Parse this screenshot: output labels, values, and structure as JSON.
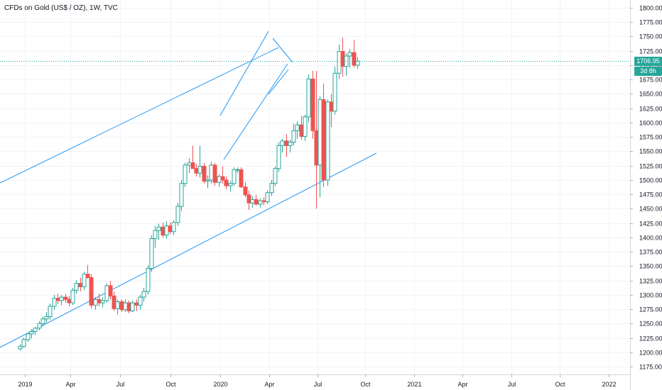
{
  "title": "CFDs on Gold (US$ / OZ), 1W, TVC",
  "price_label": "1706.95",
  "countdown_label": "3d 8h",
  "colors": {
    "up": "#26a69a",
    "down": "#ef5350",
    "trendline": "#2196f3",
    "grid": "#f0f3fa",
    "price_line": "#26a69a"
  },
  "chart_data": {
    "type": "candlestick",
    "title": "CFDs on Gold (US$ / OZ), 1W, TVC",
    "interval": "1W",
    "x_ticks": [
      "2019",
      "Apr",
      "Jul",
      "Oct",
      "2020",
      "Apr",
      "Jul",
      "Oct",
      "2021",
      "Apr",
      "Jul",
      "Oct",
      "2022"
    ],
    "y_ticks": [
      1175,
      1200,
      1225,
      1250,
      1275,
      1300,
      1325,
      1350,
      1375,
      1400,
      1425,
      1450,
      1475,
      1500,
      1525,
      1550,
      1575,
      1600,
      1625,
      1650,
      1675,
      1700,
      1725,
      1750,
      1775,
      1800
    ],
    "ylim": [
      1165,
      1812
    ],
    "last_price": 1706.95,
    "candles": [
      {
        "date": "2018-12-23",
        "o": 1206,
        "h": 1214,
        "l": 1203,
        "c": 1210
      },
      {
        "date": "2018-12-30",
        "o": 1210,
        "h": 1226,
        "l": 1208,
        "c": 1222
      },
      {
        "date": "2019-01-06",
        "o": 1222,
        "h": 1234,
        "l": 1218,
        "c": 1232
      },
      {
        "date": "2019-01-13",
        "o": 1232,
        "h": 1240,
        "l": 1224,
        "c": 1236
      },
      {
        "date": "2019-01-20",
        "o": 1236,
        "h": 1244,
        "l": 1230,
        "c": 1242
      },
      {
        "date": "2019-01-27",
        "o": 1242,
        "h": 1254,
        "l": 1238,
        "c": 1250
      },
      {
        "date": "2019-02-03",
        "o": 1250,
        "h": 1262,
        "l": 1245,
        "c": 1258
      },
      {
        "date": "2019-02-10",
        "o": 1258,
        "h": 1270,
        "l": 1252,
        "c": 1262
      },
      {
        "date": "2019-02-17",
        "o": 1262,
        "h": 1285,
        "l": 1257,
        "c": 1280
      },
      {
        "date": "2019-02-24",
        "o": 1280,
        "h": 1300,
        "l": 1274,
        "c": 1294
      },
      {
        "date": "2019-03-03",
        "o": 1294,
        "h": 1302,
        "l": 1284,
        "c": 1290
      },
      {
        "date": "2019-03-10",
        "o": 1290,
        "h": 1300,
        "l": 1282,
        "c": 1296
      },
      {
        "date": "2019-03-17",
        "o": 1296,
        "h": 1302,
        "l": 1286,
        "c": 1292
      },
      {
        "date": "2019-03-24",
        "o": 1292,
        "h": 1298,
        "l": 1280,
        "c": 1286
      },
      {
        "date": "2019-03-31",
        "o": 1286,
        "h": 1312,
        "l": 1282,
        "c": 1308
      },
      {
        "date": "2019-04-07",
        "o": 1308,
        "h": 1326,
        "l": 1302,
        "c": 1320
      },
      {
        "date": "2019-04-14",
        "o": 1320,
        "h": 1330,
        "l": 1306,
        "c": 1314
      },
      {
        "date": "2019-04-21",
        "o": 1314,
        "h": 1340,
        "l": 1308,
        "c": 1336
      },
      {
        "date": "2019-04-28",
        "o": 1336,
        "h": 1352,
        "l": 1328,
        "c": 1330
      },
      {
        "date": "2019-05-05",
        "o": 1330,
        "h": 1336,
        "l": 1276,
        "c": 1282
      },
      {
        "date": "2019-05-12",
        "o": 1282,
        "h": 1296,
        "l": 1274,
        "c": 1292
      },
      {
        "date": "2019-05-19",
        "o": 1292,
        "h": 1302,
        "l": 1280,
        "c": 1286
      },
      {
        "date": "2019-05-26",
        "o": 1286,
        "h": 1296,
        "l": 1278,
        "c": 1290
      },
      {
        "date": "2019-06-02",
        "o": 1290,
        "h": 1320,
        "l": 1286,
        "c": 1316
      },
      {
        "date": "2019-06-09",
        "o": 1316,
        "h": 1324,
        "l": 1292,
        "c": 1298
      },
      {
        "date": "2019-06-16",
        "o": 1298,
        "h": 1306,
        "l": 1272,
        "c": 1276
      },
      {
        "date": "2019-06-23",
        "o": 1276,
        "h": 1292,
        "l": 1266,
        "c": 1288
      },
      {
        "date": "2019-06-30",
        "o": 1288,
        "h": 1292,
        "l": 1270,
        "c": 1274
      },
      {
        "date": "2019-07-07",
        "o": 1274,
        "h": 1292,
        "l": 1270,
        "c": 1286
      },
      {
        "date": "2019-07-14",
        "o": 1286,
        "h": 1290,
        "l": 1268,
        "c": 1272
      },
      {
        "date": "2019-07-21",
        "o": 1272,
        "h": 1290,
        "l": 1270,
        "c": 1286
      },
      {
        "date": "2019-07-28",
        "o": 1286,
        "h": 1292,
        "l": 1272,
        "c": 1282
      },
      {
        "date": "2019-08-04",
        "o": 1282,
        "h": 1300,
        "l": 1274,
        "c": 1296
      },
      {
        "date": "2019-08-11",
        "o": 1296,
        "h": 1312,
        "l": 1288,
        "c": 1306
      },
      {
        "date": "2019-08-18",
        "o": 1306,
        "h": 1352,
        "l": 1300,
        "c": 1346
      },
      {
        "date": "2019-08-25",
        "o": 1346,
        "h": 1404,
        "l": 1340,
        "c": 1398
      },
      {
        "date": "2019-09-01",
        "o": 1398,
        "h": 1420,
        "l": 1382,
        "c": 1412
      },
      {
        "date": "2019-09-08",
        "o": 1412,
        "h": 1424,
        "l": 1396,
        "c": 1418
      },
      {
        "date": "2019-09-15",
        "o": 1418,
        "h": 1426,
        "l": 1400,
        "c": 1404
      },
      {
        "date": "2019-09-22",
        "o": 1404,
        "h": 1428,
        "l": 1398,
        "c": 1420
      },
      {
        "date": "2019-09-29",
        "o": 1420,
        "h": 1426,
        "l": 1406,
        "c": 1410
      },
      {
        "date": "2019-10-06",
        "o": 1410,
        "h": 1430,
        "l": 1404,
        "c": 1426
      },
      {
        "date": "2019-10-13",
        "o": 1426,
        "h": 1460,
        "l": 1420,
        "c": 1454
      },
      {
        "date": "2019-10-20",
        "o": 1454,
        "h": 1500,
        "l": 1446,
        "c": 1494
      },
      {
        "date": "2019-10-27",
        "o": 1494,
        "h": 1530,
        "l": 1488,
        "c": 1526
      },
      {
        "date": "2019-11-03",
        "o": 1526,
        "h": 1538,
        "l": 1512,
        "c": 1530
      },
      {
        "date": "2019-11-10",
        "o": 1530,
        "h": 1560,
        "l": 1520,
        "c": 1520
      },
      {
        "date": "2019-11-17",
        "o": 1520,
        "h": 1528,
        "l": 1506,
        "c": 1512
      },
      {
        "date": "2019-11-24",
        "o": 1512,
        "h": 1560,
        "l": 1504,
        "c": 1524
      },
      {
        "date": "2019-12-01",
        "o": 1524,
        "h": 1530,
        "l": 1494,
        "c": 1498
      },
      {
        "date": "2019-12-08",
        "o": 1498,
        "h": 1508,
        "l": 1486,
        "c": 1500
      },
      {
        "date": "2019-12-15",
        "o": 1500,
        "h": 1532,
        "l": 1494,
        "c": 1526
      },
      {
        "date": "2019-12-22",
        "o": 1526,
        "h": 1530,
        "l": 1490,
        "c": 1496
      },
      {
        "date": "2019-12-29",
        "o": 1496,
        "h": 1510,
        "l": 1488,
        "c": 1506
      },
      {
        "date": "2020-01-05",
        "o": 1506,
        "h": 1524,
        "l": 1494,
        "c": 1500
      },
      {
        "date": "2020-01-12",
        "o": 1500,
        "h": 1506,
        "l": 1484,
        "c": 1490
      },
      {
        "date": "2020-01-19",
        "o": 1490,
        "h": 1498,
        "l": 1480,
        "c": 1494
      },
      {
        "date": "2020-01-26",
        "o": 1494,
        "h": 1522,
        "l": 1490,
        "c": 1518
      },
      {
        "date": "2020-02-02",
        "o": 1518,
        "h": 1522,
        "l": 1512,
        "c": 1518
      },
      {
        "date": "2020-02-09",
        "o": 1518,
        "h": 1522,
        "l": 1486,
        "c": 1488
      },
      {
        "date": "2020-02-16",
        "o": 1488,
        "h": 1496,
        "l": 1470,
        "c": 1474
      },
      {
        "date": "2020-02-23",
        "o": 1474,
        "h": 1482,
        "l": 1448,
        "c": 1460
      },
      {
        "date": "2020-03-01",
        "o": 1460,
        "h": 1472,
        "l": 1452,
        "c": 1466
      },
      {
        "date": "2020-03-08",
        "o": 1466,
        "h": 1474,
        "l": 1456,
        "c": 1458
      },
      {
        "date": "2020-03-15",
        "o": 1458,
        "h": 1468,
        "l": 1452,
        "c": 1464
      },
      {
        "date": "2020-03-22",
        "o": 1464,
        "h": 1470,
        "l": 1456,
        "c": 1462
      },
      {
        "date": "2020-03-29",
        "o": 1462,
        "h": 1482,
        "l": 1458,
        "c": 1478
      },
      {
        "date": "2020-04-05",
        "o": 1478,
        "h": 1500,
        "l": 1472,
        "c": 1494
      },
      {
        "date": "2020-04-12",
        "o": 1494,
        "h": 1524,
        "l": 1490,
        "c": 1520
      },
      {
        "date": "2020-04-19",
        "o": 1520,
        "h": 1566,
        "l": 1514,
        "c": 1560
      },
      {
        "date": "2020-04-26",
        "o": 1560,
        "h": 1572,
        "l": 1548,
        "c": 1568
      },
      {
        "date": "2020-05-03",
        "o": 1568,
        "h": 1580,
        "l": 1540,
        "c": 1560
      },
      {
        "date": "2020-05-10",
        "o": 1560,
        "h": 1570,
        "l": 1548,
        "c": 1566
      },
      {
        "date": "2020-05-17",
        "o": 1566,
        "h": 1598,
        "l": 1560,
        "c": 1586
      },
      {
        "date": "2020-05-24",
        "o": 1586,
        "h": 1602,
        "l": 1572,
        "c": 1596
      },
      {
        "date": "2020-05-31",
        "o": 1596,
        "h": 1612,
        "l": 1570,
        "c": 1576
      },
      {
        "date": "2020-06-07",
        "o": 1576,
        "h": 1614,
        "l": 1568,
        "c": 1610
      },
      {
        "date": "2020-06-14",
        "o": 1610,
        "h": 1684,
        "l": 1600,
        "c": 1676
      },
      {
        "date": "2020-06-21",
        "o": 1676,
        "h": 1690,
        "l": 1572,
        "c": 1586
      },
      {
        "date": "2020-06-28",
        "o": 1586,
        "h": 1690,
        "l": 1450,
        "c": 1526
      },
      {
        "date": "2020-07-05",
        "o": 1526,
        "h": 1646,
        "l": 1470,
        "c": 1640
      },
      {
        "date": "2020-07-12",
        "o": 1640,
        "h": 1668,
        "l": 1488,
        "c": 1500
      },
      {
        "date": "2020-07-19",
        "o": 1500,
        "h": 1640,
        "l": 1490,
        "c": 1636
      },
      {
        "date": "2020-07-26",
        "o": 1636,
        "h": 1650,
        "l": 1592,
        "c": 1620
      },
      {
        "date": "2020-08-02",
        "o": 1620,
        "h": 1698,
        "l": 1614,
        "c": 1686
      },
      {
        "date": "2020-08-09",
        "o": 1686,
        "h": 1736,
        "l": 1676,
        "c": 1724
      },
      {
        "date": "2020-08-16",
        "o": 1724,
        "h": 1748,
        "l": 1680,
        "c": 1698
      },
      {
        "date": "2020-08-23",
        "o": 1698,
        "h": 1720,
        "l": 1682,
        "c": 1716
      },
      {
        "date": "2020-08-30",
        "o": 1716,
        "h": 1728,
        "l": 1696,
        "c": 1722
      },
      {
        "date": "2020-09-06",
        "o": 1722,
        "h": 1744,
        "l": 1696,
        "c": 1700
      },
      {
        "date": "2020-09-13",
        "o": 1700,
        "h": 1714,
        "l": 1694,
        "c": 1706.95
      }
    ]
  }
}
